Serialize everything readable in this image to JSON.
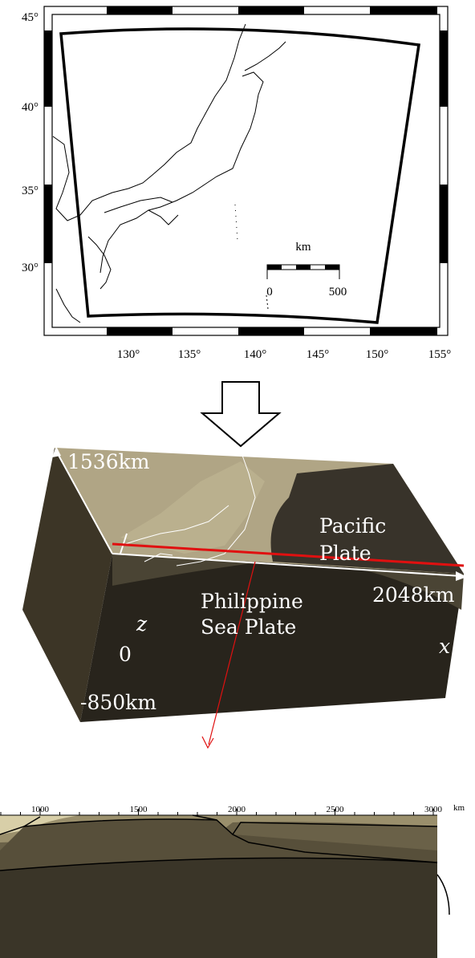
{
  "map": {
    "lat_labels": [
      "45°",
      "40°",
      "35°",
      "30°"
    ],
    "lon_labels": [
      "130°",
      "135°",
      "140°",
      "145°",
      "150°",
      "155°"
    ],
    "scale": {
      "unit": "km",
      "start": "0",
      "end": "500"
    }
  },
  "block": {
    "top_label": "1536km",
    "pacific": [
      "Pacific",
      "Plate"
    ],
    "philippine": [
      "Philippine",
      "Sea Plate"
    ],
    "x_extent": "2048km",
    "z_axis": "z",
    "origin": "0",
    "x_axis": "x",
    "depth": "-850km"
  },
  "section": {
    "ticks": [
      "1000",
      "1500",
      "2000",
      "2500",
      "3000"
    ],
    "unit": "km"
  }
}
